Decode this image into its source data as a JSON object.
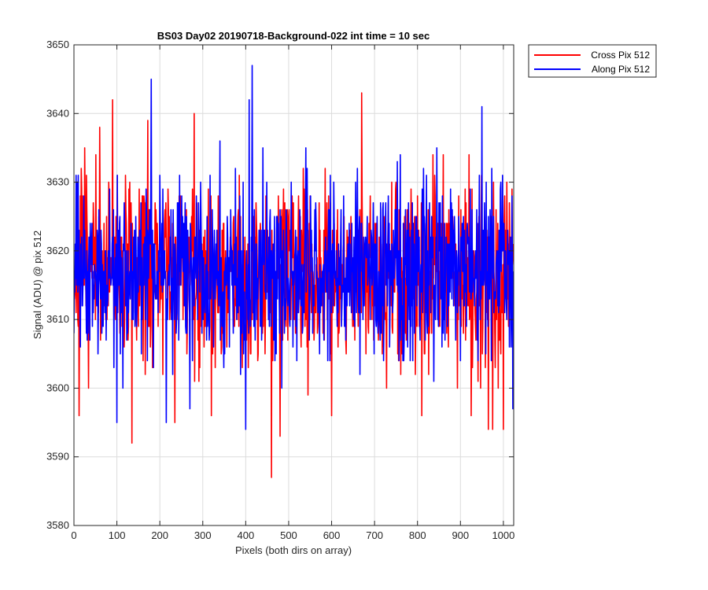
{
  "chart_data": {
    "type": "line",
    "title": "BS03 Day02 20190718-Background-022 int time = 10 sec",
    "xlabel": "Pixels (both dirs on array)",
    "ylabel": "Signal (ADU) @ pix 512",
    "xlim": [
      0,
      1024
    ],
    "ylim": [
      3580,
      3650
    ],
    "xticks": [
      0,
      100,
      200,
      300,
      400,
      500,
      600,
      700,
      800,
      900,
      1000
    ],
    "yticks": [
      3580,
      3590,
      3600,
      3610,
      3620,
      3630,
      3640,
      3650
    ],
    "grid": true,
    "legend_position": "outside-top-right",
    "x_count": 1024,
    "series": [
      {
        "name": "Cross Pix 512",
        "color": "#ff0000",
        "mean": 3617,
        "spread": 6.5,
        "noise_seed": 7,
        "features": [
          {
            "x": 12,
            "y": 3596
          },
          {
            "x": 25,
            "y": 3635
          },
          {
            "x": 60,
            "y": 3638
          },
          {
            "x": 90,
            "y": 3642
          },
          {
            "x": 135,
            "y": 3592
          },
          {
            "x": 160,
            "y": 3628
          },
          {
            "x": 172,
            "y": 3639
          },
          {
            "x": 235,
            "y": 3595
          },
          {
            "x": 280,
            "y": 3640
          },
          {
            "x": 320,
            "y": 3596
          },
          {
            "x": 385,
            "y": 3631
          },
          {
            "x": 460,
            "y": 3587
          },
          {
            "x": 480,
            "y": 3593
          },
          {
            "x": 545,
            "y": 3599
          },
          {
            "x": 585,
            "y": 3632
          },
          {
            "x": 600,
            "y": 3596
          },
          {
            "x": 670,
            "y": 3643
          },
          {
            "x": 740,
            "y": 3630
          },
          {
            "x": 810,
            "y": 3596
          },
          {
            "x": 860,
            "y": 3634
          },
          {
            "x": 925,
            "y": 3596
          },
          {
            "x": 965,
            "y": 3594
          },
          {
            "x": 975,
            "y": 3594
          },
          {
            "x": 1000,
            "y": 3594
          },
          {
            "x": 1020,
            "y": 3629
          }
        ]
      },
      {
        "name": "Along Pix 512",
        "color": "#0000ff",
        "mean": 3617,
        "spread": 6,
        "noise_seed": 23,
        "features": [
          {
            "x": 5,
            "y": 3631
          },
          {
            "x": 100,
            "y": 3595
          },
          {
            "x": 180,
            "y": 3645
          },
          {
            "x": 215,
            "y": 3595
          },
          {
            "x": 270,
            "y": 3597
          },
          {
            "x": 340,
            "y": 3636
          },
          {
            "x": 400,
            "y": 3594
          },
          {
            "x": 408,
            "y": 3642
          },
          {
            "x": 415,
            "y": 3647
          },
          {
            "x": 440,
            "y": 3635
          },
          {
            "x": 540,
            "y": 3635
          },
          {
            "x": 660,
            "y": 3632
          },
          {
            "x": 760,
            "y": 3634
          },
          {
            "x": 845,
            "y": 3635
          },
          {
            "x": 950,
            "y": 3641
          },
          {
            "x": 1022,
            "y": 3597
          }
        ]
      }
    ]
  }
}
